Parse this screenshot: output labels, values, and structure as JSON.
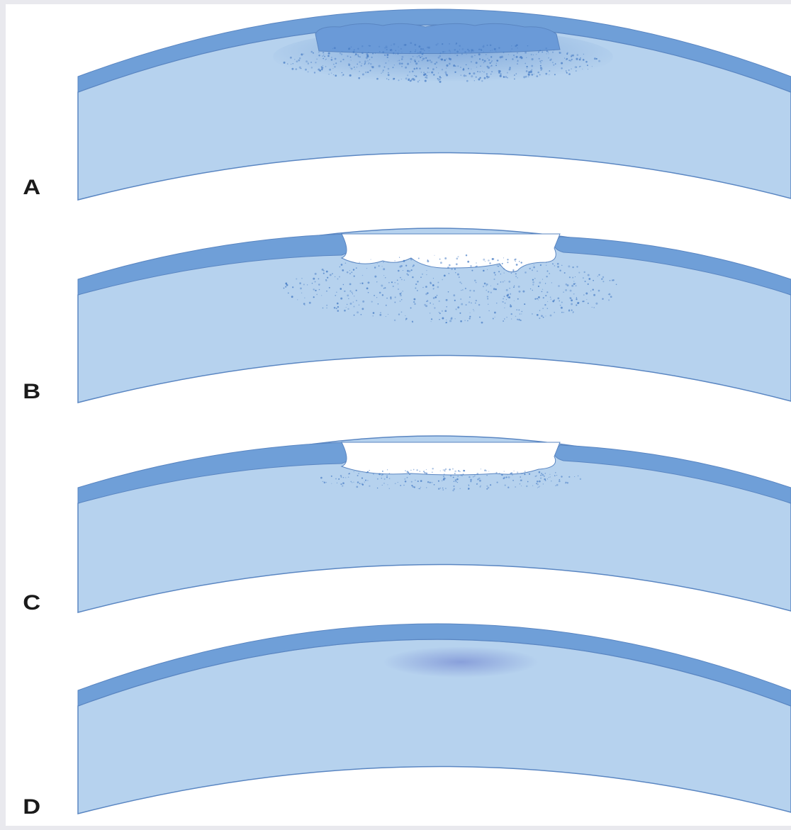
{
  "panels": [
    {
      "label": "A"
    },
    {
      "label": "B"
    },
    {
      "label": "C"
    },
    {
      "label": "D"
    }
  ],
  "colors": {
    "stroma": "#b6d2ee",
    "epithelium": "#6f9fd8",
    "outline": "#5a86c2",
    "infiltrate": "#4b7fc6",
    "background": "#ffffff",
    "frame": "#e9e9ee"
  }
}
